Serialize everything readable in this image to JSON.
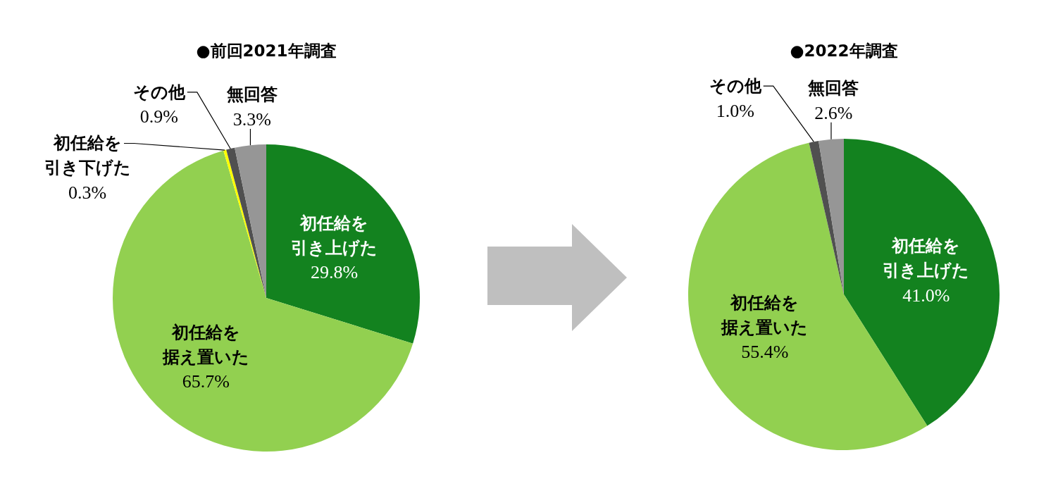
{
  "chart_data": [
    {
      "type": "pie",
      "title": "●前回2021年調査",
      "categories": [
        "初任給を引き上げた",
        "初任給を据え置いた",
        "初任給を引き下げた",
        "その他",
        "無回答"
      ],
      "values": [
        29.8,
        65.7,
        0.3,
        0.9,
        3.3
      ],
      "colors": [
        "#13821f",
        "#92d050",
        "#ffff00",
        "#505050",
        "#969696"
      ],
      "value_labels": [
        "29.8%",
        "65.7%",
        "0.3%",
        "0.9%",
        "3.3%"
      ]
    },
    {
      "type": "pie",
      "title": "●2022年調査",
      "categories": [
        "初任給を引き上げた",
        "初任給を据え置いた",
        "その他",
        "無回答"
      ],
      "values": [
        41.0,
        55.4,
        1.0,
        2.6
      ],
      "colors": [
        "#13821f",
        "#92d050",
        "#505050",
        "#969696"
      ],
      "value_labels": [
        "41.0%",
        "55.4%",
        "1.0%",
        "2.6%"
      ]
    }
  ]
}
